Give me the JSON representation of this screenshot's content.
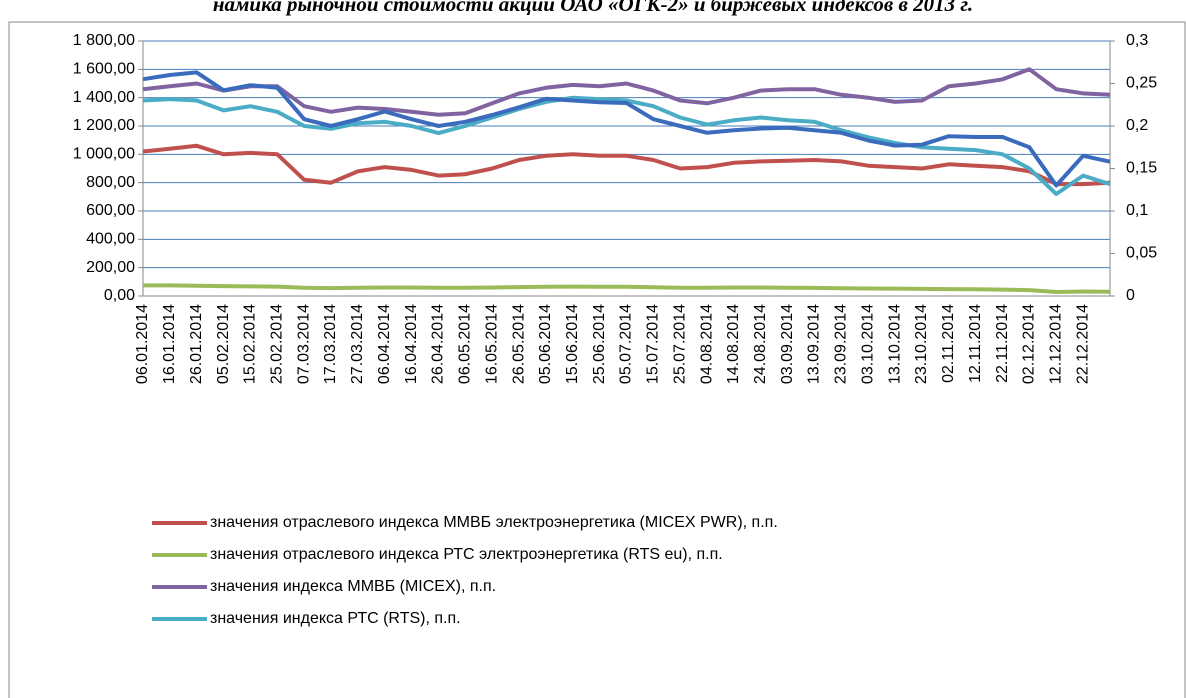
{
  "chart_data": {
    "type": "line",
    "title": "намика рыночной стоимости акций ОАО «ОГК-2» и биржевых индексов в 2013 г.",
    "categories": [
      "06.01.2014",
      "16.01.2014",
      "26.01.2014",
      "05.02.2014",
      "15.02.2014",
      "25.02.2014",
      "07.03.2014",
      "17.03.2014",
      "27.03.2014",
      "06.04.2014",
      "16.04.2014",
      "26.04.2014",
      "06.05.2014",
      "16.05.2014",
      "26.05.2014",
      "05.06.2014",
      "15.06.2014",
      "25.06.2014",
      "05.07.2014",
      "15.07.2014",
      "25.07.2014",
      "04.08.2014",
      "14.08.2014",
      "24.08.2014",
      "03.09.2014",
      "13.09.2014",
      "23.09.2014",
      "03.10.2014",
      "13.10.2014",
      "23.10.2014",
      "02.11.2014",
      "12.11.2014",
      "22.11.2014",
      "02.12.2014",
      "12.12.2014",
      "22.12.2014",
      null
    ],
    "series": [
      {
        "name": "значения отраслевого индекса ММВБ электроэнергетика (MICEX PWR), п.п.",
        "color": "#c0504d",
        "values": [
          1020,
          1040,
          1060,
          1000,
          1010,
          1000,
          820,
          800,
          880,
          910,
          890,
          850,
          860,
          900,
          960,
          990,
          1000,
          990,
          990,
          960,
          900,
          910,
          940,
          950,
          955,
          960,
          950,
          920,
          910,
          900,
          930,
          920,
          910,
          880,
          790,
          790,
          800
        ]
      },
      {
        "name": "значения отраслевого индекса РТС электроэнергетика (RTS eu), п.п.",
        "color": "#9bbb59",
        "values": [
          75,
          75,
          72,
          70,
          68,
          66,
          58,
          56,
          58,
          60,
          60,
          58,
          58,
          60,
          63,
          65,
          66,
          65,
          65,
          62,
          58,
          58,
          60,
          60,
          58,
          57,
          55,
          53,
          52,
          50,
          49,
          47,
          45,
          42,
          28,
          32,
          30
        ]
      },
      {
        "name": "значения индекса ММВБ (MICEX), п.п.",
        "color": "#8064a2",
        "values": [
          1460,
          1480,
          1500,
          1450,
          1480,
          1480,
          1340,
          1300,
          1330,
          1320,
          1300,
          1280,
          1290,
          1360,
          1430,
          1470,
          1490,
          1480,
          1500,
          1450,
          1380,
          1360,
          1400,
          1450,
          1460,
          1460,
          1420,
          1400,
          1370,
          1380,
          1480,
          1500,
          1530,
          1600,
          1460,
          1430,
          1420
        ]
      },
      {
        "name": "значения индекса РТС (RTS), п.п.",
        "color": "#4bacc6",
        "values": [
          1380,
          1390,
          1380,
          1310,
          1340,
          1300,
          1200,
          1180,
          1220,
          1230,
          1200,
          1150,
          1200,
          1260,
          1320,
          1370,
          1400,
          1390,
          1380,
          1340,
          1260,
          1210,
          1240,
          1260,
          1240,
          1230,
          1170,
          1120,
          1080,
          1050,
          1040,
          1030,
          1000,
          900,
          720,
          850,
          790
        ]
      },
      {
        "color": "#3a6bbd",
        "axis": "y2",
        "values": [
          0.255,
          0.26,
          0.263,
          0.242,
          0.248,
          0.245,
          0.208,
          0.2,
          0.208,
          0.217,
          0.208,
          0.2,
          0.205,
          0.213,
          0.222,
          0.232,
          0.23,
          0.228,
          0.227,
          0.208,
          0.2,
          0.192,
          0.195,
          0.197,
          0.198,
          0.195,
          0.192,
          0.183,
          0.177,
          0.178,
          0.188,
          0.187,
          0.187,
          0.175,
          0.13,
          0.165,
          0.158
        ]
      }
    ],
    "ylim": [
      0,
      1800
    ],
    "yticks": [
      {
        "value": 0,
        "label": "0,00"
      },
      {
        "value": 200,
        "label": "200,00"
      },
      {
        "value": 400,
        "label": "400,00"
      },
      {
        "value": 600,
        "label": "600,00"
      },
      {
        "value": 800,
        "label": "800,00"
      },
      {
        "value": 1000,
        "label": "1 000,00"
      },
      {
        "value": 1200,
        "label": "1 200,00"
      },
      {
        "value": 1400,
        "label": "1 400,00"
      },
      {
        "value": 1600,
        "label": "1 600,00"
      },
      {
        "value": 1800,
        "label": "1 800,00"
      }
    ],
    "y2lim": [
      0,
      0.3
    ],
    "y2ticks": [
      0,
      {
        "value": 0.05,
        "label": "0,05"
      },
      {
        "value": 0.1,
        "label": "0,1"
      },
      {
        "value": 0.15,
        "label": "0,15"
      },
      {
        "value": 0.2,
        "label": "0,2"
      },
      {
        "value": 0.25,
        "label": "0,25"
      },
      {
        "value": 0.3,
        "label": "0,3"
      }
    ],
    "grid": true
  }
}
